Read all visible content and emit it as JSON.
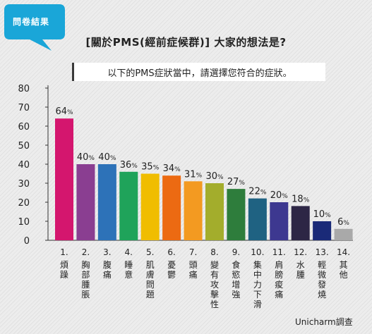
{
  "badge": {
    "label": "問卷結果",
    "color": "#1aa6d8"
  },
  "chart_data": {
    "type": "bar",
    "title": "[關於PMS(經前症候群)] 大家的想法是?",
    "subtitle": "以下的PMS症狀當中，請選擇您符合的症狀。",
    "source": "Unicharm調查",
    "ylim": [
      0,
      80
    ],
    "yticks": [
      0,
      10,
      20,
      30,
      40,
      50,
      60,
      70,
      80
    ],
    "value_suffix": "%",
    "grid": false,
    "categories": [
      {
        "num": "1.",
        "label": "煩躁"
      },
      {
        "num": "2.",
        "label": "胸部腫脹"
      },
      {
        "num": "3.",
        "label": "腹痛"
      },
      {
        "num": "4.",
        "label": "睡意"
      },
      {
        "num": "5.",
        "label": "肌膚問題"
      },
      {
        "num": "6.",
        "label": "憂鬱"
      },
      {
        "num": "7.",
        "label": "頭痛"
      },
      {
        "num": "8.",
        "label": "變有攻擊性"
      },
      {
        "num": "9.",
        "label": "食慾增強"
      },
      {
        "num": "10.",
        "label": "集中力下滑"
      },
      {
        "num": "11.",
        "label": "肩膀痠痛"
      },
      {
        "num": "12.",
        "label": "水腫"
      },
      {
        "num": "13.",
        "label": "輕微發燒"
      },
      {
        "num": "14.",
        "label": "其他"
      }
    ],
    "values": [
      64,
      40,
      40,
      36,
      35,
      34,
      31,
      30,
      27,
      22,
      20,
      18,
      10,
      6
    ],
    "colors": [
      "#d4166e",
      "#8a3e91",
      "#2d72b8",
      "#1fa35a",
      "#f0bd00",
      "#ec6a12",
      "#f39a21",
      "#a3ad2c",
      "#2e7d3c",
      "#1f6282",
      "#3d3890",
      "#2d2645",
      "#1a2a78",
      "#a9a9a9"
    ]
  }
}
